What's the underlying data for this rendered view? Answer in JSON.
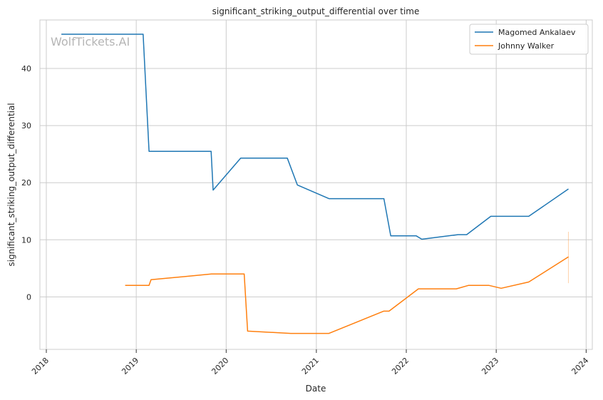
{
  "chart_data": {
    "type": "line",
    "title": "significant_striking_output_differential over time",
    "xlabel": "Date",
    "ylabel": "significant_striking_output_differential",
    "watermark": "WolfTickets.AI",
    "x_ticks": [
      "2018",
      "2019",
      "2020",
      "2021",
      "2022",
      "2023",
      "2024"
    ],
    "y_ticks": [
      0,
      10,
      20,
      30,
      40
    ],
    "xlim": [
      "2017-12-06",
      "2024-01-26"
    ],
    "ylim": [
      -9.2,
      48.5
    ],
    "grid": true,
    "legend_position": "top-right",
    "series": [
      {
        "name": "Magomed Ankalaev",
        "color": "#1f77b4",
        "points": [
          [
            "2018-03-03",
            46.0
          ],
          [
            "2019-01-29",
            46.0
          ],
          [
            "2019-02-22",
            25.5
          ],
          [
            "2019-11-01",
            25.5
          ],
          [
            "2019-11-09",
            18.7
          ],
          [
            "2020-02-29",
            24.3
          ],
          [
            "2020-09-05",
            24.3
          ],
          [
            "2020-10-16",
            19.6
          ],
          [
            "2021-02-21",
            17.2
          ],
          [
            "2021-10-02",
            17.2
          ],
          [
            "2021-10-30",
            10.7
          ],
          [
            "2022-02-10",
            10.7
          ],
          [
            "2022-03-05",
            10.1
          ],
          [
            "2022-07-30",
            10.9
          ],
          [
            "2022-09-03",
            10.9
          ],
          [
            "2022-12-10",
            14.1
          ],
          [
            "2023-05-13",
            14.1
          ],
          [
            "2023-10-21",
            18.9
          ]
        ]
      },
      {
        "name": "Johnny Walker",
        "color": "#ff7f0e",
        "points": [
          [
            "2018-11-17",
            2.0
          ],
          [
            "2019-02-22",
            2.0
          ],
          [
            "2019-03-02",
            3.0
          ],
          [
            "2019-11-02",
            4.0
          ],
          [
            "2020-03-14",
            4.0
          ],
          [
            "2020-03-28",
            -6.0
          ],
          [
            "2020-09-19",
            -6.4
          ],
          [
            "2021-02-21",
            -6.4
          ],
          [
            "2021-10-01",
            -2.5
          ],
          [
            "2021-10-23",
            -2.5
          ],
          [
            "2022-02-19",
            1.4
          ],
          [
            "2022-07-23",
            1.4
          ],
          [
            "2022-09-10",
            2.0
          ],
          [
            "2022-12-03",
            2.0
          ],
          [
            "2023-01-21",
            1.5
          ],
          [
            "2023-05-13",
            2.6
          ],
          [
            "2023-10-21",
            7.0
          ]
        ],
        "error_bar": {
          "date": "2023-10-21",
          "low": 2.4,
          "high": 11.4
        }
      }
    ]
  }
}
